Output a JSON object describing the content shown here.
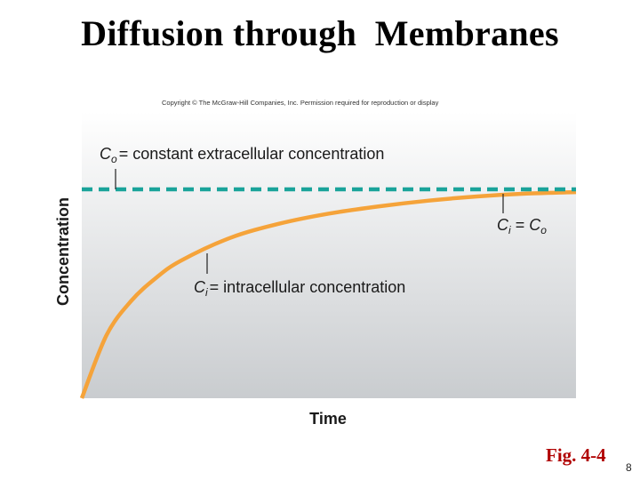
{
  "slide": {
    "title": "Diffusion through  Membranes",
    "copyright": "Copyright © The McGraw-Hill Companies, Inc. Permission required for reproduction or display",
    "figure_label": "Fig. 4-4",
    "page_number": "8"
  },
  "colors": {
    "extracellular_line": "#1aa39a",
    "intracellular_curve": "#f5a33a",
    "plot_bg_top": "#ffffff",
    "plot_bg_bottom": "#c9cccf",
    "figure_label": "#b00000"
  },
  "chart_data": {
    "type": "line",
    "xlabel": "Time",
    "ylabel": "Concentration",
    "xlim": [
      0,
      1
    ],
    "ylim": [
      0,
      1
    ],
    "ticks": "none",
    "grid": false,
    "series": [
      {
        "name": "C_o",
        "style": "dashed",
        "x": [
          0,
          1
        ],
        "y": [
          0.73,
          0.73
        ]
      },
      {
        "name": "C_i",
        "style": "solid",
        "x": [
          0,
          0.05,
          0.1,
          0.15,
          0.2,
          0.3,
          0.4,
          0.5,
          0.6,
          0.7,
          0.8,
          0.9,
          1.0
        ],
        "y": [
          0.0,
          0.22,
          0.34,
          0.42,
          0.48,
          0.56,
          0.61,
          0.645,
          0.67,
          0.69,
          0.705,
          0.715,
          0.72
        ]
      }
    ],
    "annotations": [
      {
        "symbol": "C",
        "subscript": "o",
        "text": "= constant extracellular concentration"
      },
      {
        "symbol": "C",
        "subscript": "i",
        "text": "= intracellular concentration"
      },
      {
        "symbol": "C",
        "subscript": "i",
        "text": " = ",
        "symbol2": "C",
        "subscript2": "o"
      }
    ]
  }
}
